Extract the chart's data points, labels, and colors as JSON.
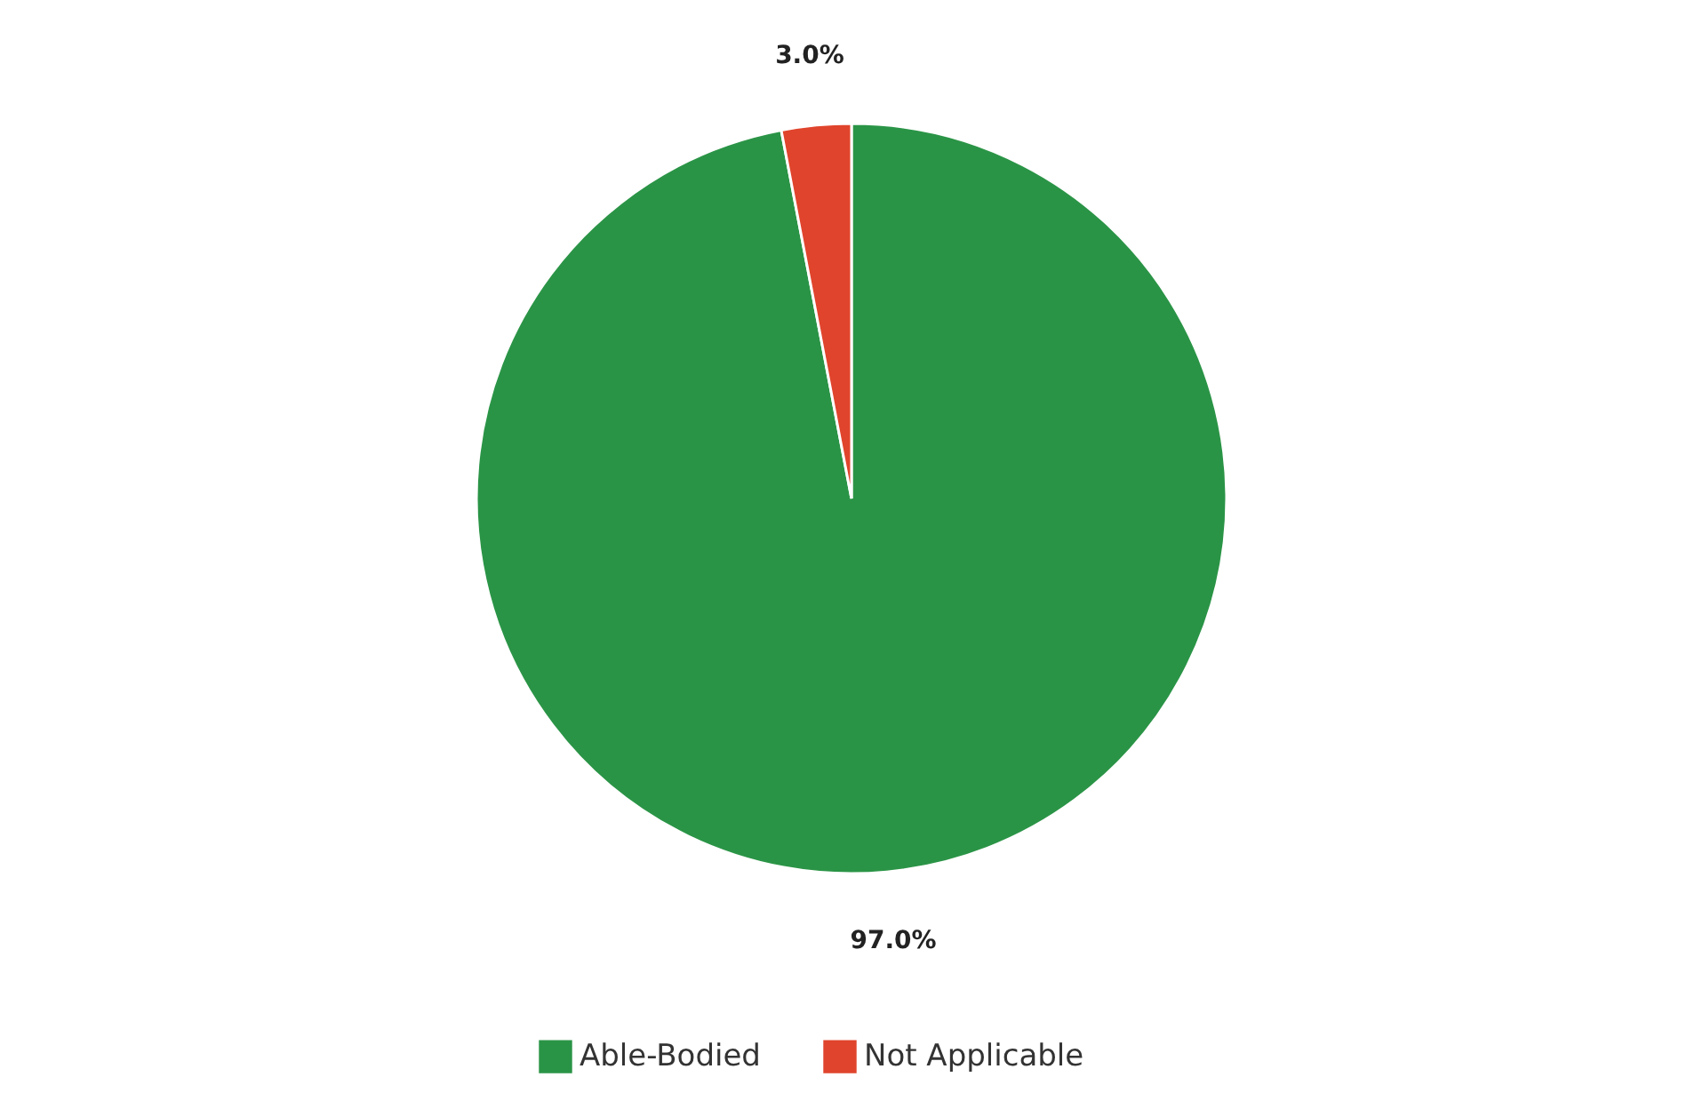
{
  "chart_data": {
    "type": "pie",
    "categories": [
      "Able-Bodied",
      "Not Applicable"
    ],
    "values": [
      97,
      3
    ],
    "colors": [
      "#2a9446",
      "#e0442c"
    ],
    "value_labels": [
      "97.0%",
      "3.0%"
    ],
    "legend": "bottom"
  }
}
